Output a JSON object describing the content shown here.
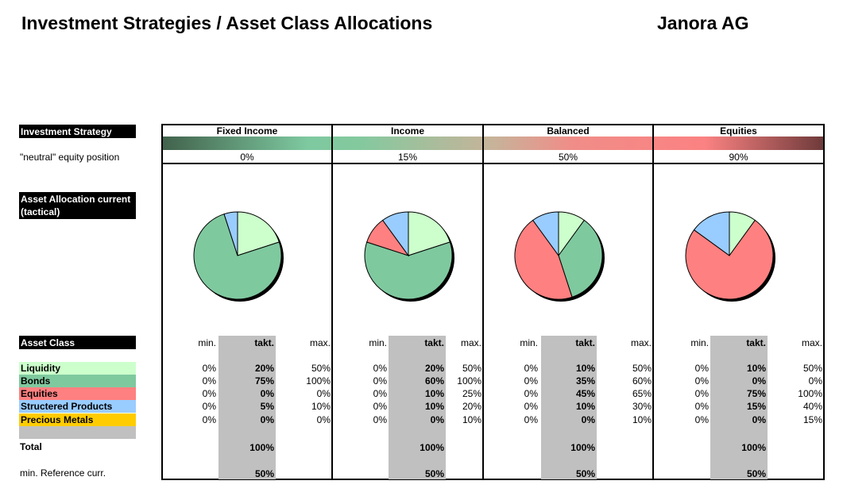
{
  "header": {
    "title": "Investment Strategies / Asset Class Allocations",
    "company": "Janora AG"
  },
  "labels": {
    "strategy": "Investment Strategy",
    "neutral": "\"neutral\" equity position",
    "allocation": "Asset Allocation current (tactical)",
    "asset_class": "Asset Class",
    "total": "Total",
    "ref_curr": "min. Reference curr."
  },
  "subheaders": {
    "min": "min.",
    "takt": "takt.",
    "max": "max."
  },
  "asset_classes": [
    {
      "name": "Liquidity",
      "color": "#ccffcc"
    },
    {
      "name": "Bonds",
      "color": "#7fc99f"
    },
    {
      "name": "Equities",
      "color": "#ff8080"
    },
    {
      "name": "Structered Products",
      "color": "#99ccff"
    },
    {
      "name": "Precious Metals",
      "color": "#ffcc00"
    }
  ],
  "strategies": [
    {
      "name": "Fixed Income",
      "neutral": "0%",
      "min": [
        "0%",
        "0%",
        "0%",
        "0%",
        "0%"
      ],
      "takt": [
        "20%",
        "75%",
        "0%",
        "5%",
        "0%"
      ],
      "max": [
        "50%",
        "100%",
        "0%",
        "10%",
        "0%"
      ],
      "total": "100%",
      "ref": "50%"
    },
    {
      "name": "Income",
      "neutral": "15%",
      "min": [
        "0%",
        "0%",
        "0%",
        "0%",
        "0%"
      ],
      "takt": [
        "20%",
        "60%",
        "10%",
        "10%",
        "0%"
      ],
      "max": [
        "50%",
        "100%",
        "25%",
        "20%",
        "10%"
      ],
      "total": "100%",
      "ref": "50%"
    },
    {
      "name": "Balanced",
      "neutral": "50%",
      "min": [
        "0%",
        "0%",
        "0%",
        "0%",
        "0%"
      ],
      "takt": [
        "10%",
        "35%",
        "45%",
        "10%",
        "0%"
      ],
      "max": [
        "50%",
        "60%",
        "65%",
        "30%",
        "10%"
      ],
      "total": "100%",
      "ref": "50%"
    },
    {
      "name": "Equities",
      "neutral": "90%",
      "min": [
        "0%",
        "0%",
        "0%",
        "0%",
        "0%"
      ],
      "takt": [
        "10%",
        "0%",
        "75%",
        "15%",
        "0%"
      ],
      "max": [
        "50%",
        "0%",
        "100%",
        "40%",
        "15%"
      ],
      "total": "100%",
      "ref": "50%"
    }
  ],
  "chart_data": [
    {
      "type": "pie",
      "title": "Fixed Income",
      "categories": [
        "Liquidity",
        "Bonds",
        "Equities",
        "Structered Products",
        "Precious Metals"
      ],
      "values": [
        20,
        75,
        0,
        5,
        0
      ]
    },
    {
      "type": "pie",
      "title": "Income",
      "categories": [
        "Liquidity",
        "Bonds",
        "Equities",
        "Structered Products",
        "Precious Metals"
      ],
      "values": [
        20,
        60,
        10,
        10,
        0
      ]
    },
    {
      "type": "pie",
      "title": "Balanced",
      "categories": [
        "Liquidity",
        "Bonds",
        "Equities",
        "Structered Products",
        "Precious Metals"
      ],
      "values": [
        10,
        35,
        45,
        10,
        0
      ]
    },
    {
      "type": "pie",
      "title": "Equities",
      "categories": [
        "Liquidity",
        "Bonds",
        "Equities",
        "Structered Products",
        "Precious Metals"
      ],
      "values": [
        10,
        0,
        75,
        15,
        0
      ]
    }
  ]
}
